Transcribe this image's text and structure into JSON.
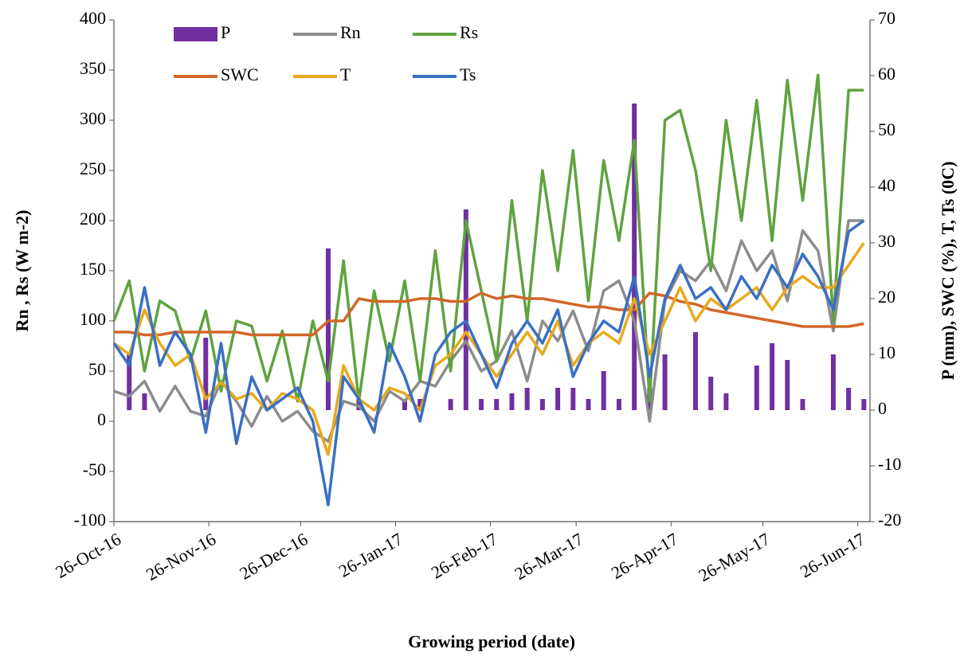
{
  "chart_data": {
    "type": "line",
    "x_label": "Growing period (date)",
    "y_label": "Rn , Rs (W  m-2)",
    "y2_label": "P (mm), SWC (%), T, Ts (0C)",
    "x": [
      "2016-10-26",
      "2016-10-31",
      "2016-11-05",
      "2016-11-10",
      "2016-11-15",
      "2016-11-20",
      "2016-11-25",
      "2016-11-30",
      "2016-12-05",
      "2016-12-10",
      "2016-12-15",
      "2016-12-20",
      "2016-12-25",
      "2016-12-30",
      "2017-01-04",
      "2017-01-09",
      "2017-01-14",
      "2017-01-19",
      "2017-01-24",
      "2017-01-29",
      "2017-02-03",
      "2017-02-08",
      "2017-02-13",
      "2017-02-18",
      "2017-02-23",
      "2017-02-28",
      "2017-03-05",
      "2017-03-10",
      "2017-03-15",
      "2017-03-20",
      "2017-03-25",
      "2017-03-30",
      "2017-04-04",
      "2017-04-09",
      "2017-04-14",
      "2017-04-19",
      "2017-04-24",
      "2017-04-29",
      "2017-05-04",
      "2017-05-09",
      "2017-05-14",
      "2017-05-19",
      "2017-05-24",
      "2017-05-29",
      "2017-06-03",
      "2017-06-08",
      "2017-06-13",
      "2017-06-18",
      "2017-06-23",
      "2017-06-28"
    ],
    "xlim": [
      "2016-10-26",
      "2017-06-30"
    ],
    "xticks": [
      {
        "value": "2016-10-26",
        "label": "26-Oct-16"
      },
      {
        "value": "2016-11-26",
        "label": "26-Nov-16"
      },
      {
        "value": "2016-12-26",
        "label": "26-Dec-16"
      },
      {
        "value": "2017-01-26",
        "label": "26-Jan-17"
      },
      {
        "value": "2017-02-26",
        "label": "26-Feb-17"
      },
      {
        "value": "2017-03-26",
        "label": "26-Mar-17"
      },
      {
        "value": "2017-04-26",
        "label": "26-Apr-17"
      },
      {
        "value": "2017-05-26",
        "label": "26-May-17"
      },
      {
        "value": "2017-06-26",
        "label": "26-Jun-17"
      }
    ],
    "ylim": [
      -100,
      400
    ],
    "yticks": [
      -100,
      -50,
      0,
      50,
      100,
      150,
      200,
      250,
      300,
      350,
      400
    ],
    "y2lim": [
      -20,
      70
    ],
    "y2ticks": [
      -20,
      -10,
      0,
      10,
      20,
      30,
      40,
      50,
      60,
      70
    ],
    "legend": "upper left",
    "series": [
      {
        "name": "P",
        "type": "bar",
        "axis": "y2",
        "color": "#7030a0",
        "values": [
          0,
          10,
          3,
          0,
          0,
          0,
          13,
          0,
          0,
          0,
          0,
          0,
          0,
          0,
          29,
          0,
          2,
          0,
          0,
          2,
          2,
          0,
          2,
          36,
          2,
          2,
          3,
          4,
          2,
          4,
          4,
          2,
          7,
          2,
          55,
          4,
          10,
          0,
          14,
          6,
          3,
          0,
          8,
          12,
          9,
          2,
          0,
          10,
          4,
          2
        ]
      },
      {
        "name": "Rn",
        "color": "#8c8c8c",
        "values": [
          30,
          25,
          40,
          10,
          35,
          10,
          5,
          40,
          20,
          -5,
          25,
          0,
          10,
          -10,
          -20,
          20,
          15,
          0,
          30,
          20,
          40,
          35,
          60,
          80,
          50,
          60,
          90,
          40,
          100,
          80,
          110,
          70,
          130,
          140,
          100,
          0,
          120,
          150,
          140,
          160,
          130,
          180,
          150,
          170,
          120,
          190,
          170,
          90,
          200,
          200
        ]
      },
      {
        "name": "Rs",
        "color": "#5fa33f",
        "values": [
          100,
          140,
          50,
          120,
          110,
          60,
          110,
          30,
          100,
          95,
          40,
          90,
          20,
          100,
          40,
          160,
          20,
          130,
          60,
          140,
          40,
          170,
          50,
          200,
          130,
          60,
          220,
          100,
          250,
          150,
          270,
          120,
          260,
          180,
          280,
          20,
          300,
          310,
          250,
          150,
          300,
          200,
          320,
          180,
          340,
          220,
          345,
          100,
          330,
          330
        ]
      },
      {
        "name": "SWC",
        "axis": "y2",
        "color": "#d2672a",
        "values": [
          14,
          14,
          13.5,
          13.5,
          14,
          14,
          14,
          14,
          14,
          13.5,
          13.5,
          13.5,
          13.5,
          13.5,
          16,
          16,
          20,
          19.5,
          19.5,
          19.5,
          20,
          20,
          19.5,
          19.5,
          21,
          20,
          20.5,
          20,
          20,
          19.5,
          19,
          18.5,
          18.5,
          18,
          18,
          21,
          20.5,
          19.5,
          19,
          18,
          17.5,
          17,
          16.5,
          16,
          15.5,
          15,
          15,
          15,
          15,
          15.5
        ]
      },
      {
        "name": "T",
        "axis": "y2",
        "color": "#e8a91c",
        "values": [
          12,
          10,
          18,
          12,
          8,
          10,
          2,
          5,
          2,
          3,
          0,
          3,
          2,
          0,
          -8,
          8,
          2,
          0,
          4,
          3,
          0,
          8,
          10,
          14,
          10,
          6,
          10,
          14,
          10,
          16,
          8,
          12,
          14,
          12,
          20,
          10,
          16,
          22,
          16,
          20,
          18,
          20,
          22,
          18,
          22,
          24,
          22,
          22,
          26,
          30
        ]
      },
      {
        "name": "Ts",
        "axis": "y2",
        "color": "#3a6fc4",
        "values": [
          12,
          8,
          22,
          8,
          14,
          10,
          -4,
          12,
          -6,
          6,
          0,
          2,
          4,
          -2,
          -17,
          6,
          2,
          -4,
          12,
          6,
          -2,
          10,
          14,
          16,
          10,
          4,
          12,
          16,
          12,
          18,
          6,
          12,
          16,
          14,
          24,
          6,
          20,
          26,
          20,
          22,
          18,
          24,
          20,
          26,
          22,
          28,
          24,
          18,
          32,
          34
        ]
      }
    ]
  }
}
